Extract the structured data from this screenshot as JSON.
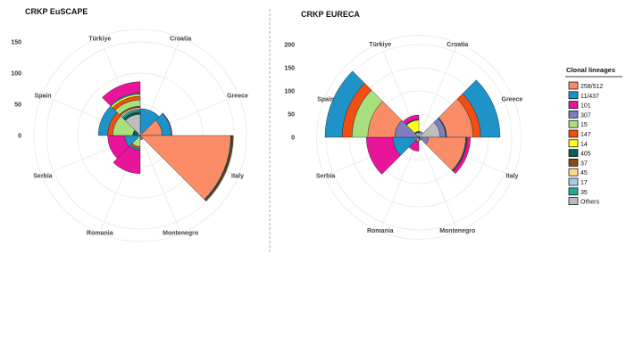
{
  "legend": {
    "title": "Clonal lineages",
    "items": [
      {
        "label": "258/512",
        "color": "#FA8C68"
      },
      {
        "label": "11/437",
        "color": "#1F93C8"
      },
      {
        "label": "101",
        "color": "#E8149A"
      },
      {
        "label": "307",
        "color": "#7F7CC0"
      },
      {
        "label": "15",
        "color": "#A8E07E"
      },
      {
        "label": "147",
        "color": "#F04E13"
      },
      {
        "label": "14",
        "color": "#FFFF1A"
      },
      {
        "label": "405",
        "color": "#0A5C56"
      },
      {
        "label": "37",
        "color": "#8B4A12"
      },
      {
        "label": "45",
        "color": "#FFD98A"
      },
      {
        "label": "17",
        "color": "#A8CBE8"
      },
      {
        "label": "35",
        "color": "#28A69A"
      },
      {
        "label": "Others",
        "color": "#BDBDBD"
      }
    ]
  },
  "chart_data": [
    {
      "type": "bar",
      "subtype": "polar-stacked",
      "title": "CRKP EuSCAPE",
      "categories": [
        "Croatia",
        "Greece",
        "Italy",
        "Montenegro",
        "Romania",
        "Serbia",
        "Spain",
        "Türkiye"
      ],
      "rlim": [
        0,
        170
      ],
      "rticks": [
        0,
        50,
        100,
        150
      ],
      "grid": true,
      "stacks": {
        "Croatia": [
          [
            "15",
            5
          ],
          [
            "11/437",
            38
          ]
        ],
        "Greece": [
          [
            "258/512",
            35
          ],
          [
            "11/437",
            15
          ],
          [
            "101",
            1
          ]
        ],
        "Italy": [
          [
            "258/512",
            145
          ],
          [
            "405",
            2
          ],
          [
            "37",
            2
          ]
        ],
        "Montenegro": [
          [
            "Others",
            3
          ],
          [
            "307",
            4
          ]
        ],
        "Romania": [
          [
            "15",
            18
          ],
          [
            "147",
            3
          ],
          [
            "11/437",
            3
          ],
          [
            "101",
            37
          ]
        ],
        "Serbia": [
          [
            "11/437",
            25
          ],
          [
            "101",
            27
          ]
        ],
        "Spain": [
          [
            "258/512",
            4
          ],
          [
            "405",
            8
          ],
          [
            "15",
            32
          ],
          [
            "147",
            8
          ],
          [
            "11/437",
            15
          ]
        ],
        "Türkiye": [
          [
            "Others",
            34
          ],
          [
            "405",
            4
          ],
          [
            "35",
            3
          ],
          [
            "17",
            2
          ],
          [
            "45",
            2
          ],
          [
            "37",
            2
          ],
          [
            "15",
            10
          ],
          [
            "147",
            6
          ],
          [
            "14",
            3
          ],
          [
            "11/437",
            2
          ],
          [
            "101",
            18
          ]
        ]
      }
    },
    {
      "type": "bar",
      "subtype": "polar-stacked",
      "title": "CRKP EURECA",
      "categories": [
        "Croatia",
        "Greece",
        "Italy",
        "Montenegro",
        "Romania",
        "Serbia",
        "Spain",
        "Türkiye"
      ],
      "rlim": [
        0,
        220
      ],
      "rticks": [
        0,
        50,
        100,
        150,
        200
      ],
      "grid": true,
      "stacks": {
        "Croatia": [
          [
            "Others",
            10
          ],
          [
            "307",
            3
          ]
        ],
        "Greece": [
          [
            "Others",
            46
          ],
          [
            "307",
            12
          ],
          [
            "405",
            2
          ],
          [
            "258/512",
            57
          ],
          [
            "147",
            16
          ],
          [
            "11/437",
            42
          ]
        ],
        "Italy": [
          [
            "307",
            21
          ],
          [
            "258/512",
            80
          ],
          [
            "405",
            3
          ],
          [
            "101",
            7
          ]
        ],
        "Montenegro": [
          [
            "Others",
            3
          ],
          [
            "307",
            4
          ]
        ],
        "Romania": [
          [
            "Others",
            8
          ],
          [
            "147",
            3
          ],
          [
            "101",
            19
          ]
        ],
        "Serbia": [
          [
            "11/437",
            56
          ],
          [
            "101",
            57
          ]
        ],
        "Spain": [
          [
            "307",
            52
          ],
          [
            "258/512",
            58
          ],
          [
            "15",
            34
          ],
          [
            "147",
            21
          ],
          [
            "11/437",
            37
          ]
        ],
        "Türkiye": [
          [
            "Others",
            10
          ],
          [
            "405",
            3
          ],
          [
            "14",
            24
          ],
          [
            "405",
            2
          ],
          [
            "101",
            9
          ]
        ]
      }
    }
  ]
}
